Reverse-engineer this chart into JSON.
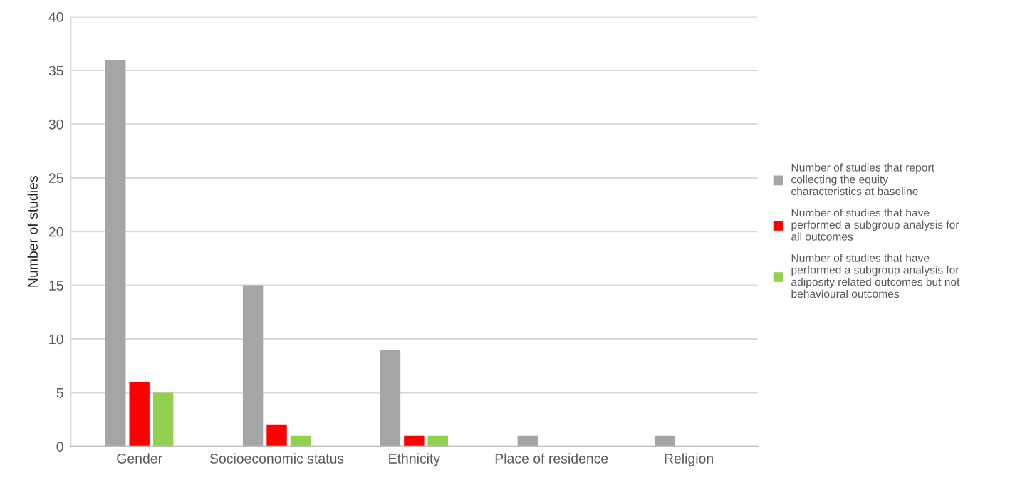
{
  "chart_data": {
    "type": "bar",
    "ylabel": "Number of studies",
    "categories": [
      "Gender",
      "Socioeconomic status",
      "Ethnicity",
      "Place of residence",
      "Religion"
    ],
    "series": [
      {
        "name": "Number of studies that report collecting the equity characteristics at baseline",
        "color": "#a5a5a5",
        "values": [
          36,
          15,
          9,
          1,
          1
        ]
      },
      {
        "name": "Number of studies that have performed a subgroup analysis for all outcomes",
        "color": "#ff0000",
        "values": [
          6,
          2,
          1,
          0,
          0
        ]
      },
      {
        "name": "Number of studies that have performed a subgroup analysis for adiposity related outcomes but not behavioural outcomes",
        "color": "#92d050",
        "values": [
          5,
          1,
          1,
          0,
          0
        ]
      }
    ],
    "ylim": [
      0,
      40
    ],
    "yticks": [
      0,
      5,
      10,
      15,
      20,
      25,
      30,
      35,
      40
    ],
    "grid": "y",
    "legend": "right"
  }
}
